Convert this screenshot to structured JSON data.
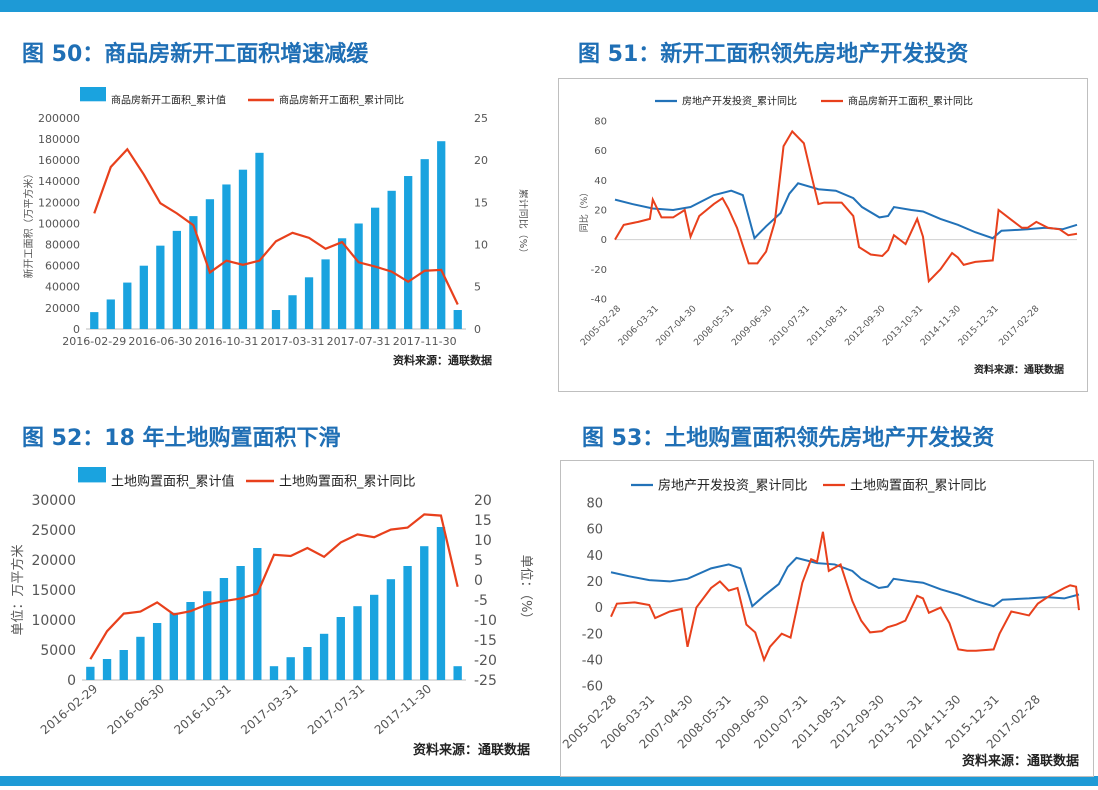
{
  "colors": {
    "accent": "#1e9ad6",
    "title": "#1f6fb5",
    "blue_series": "#1aa3df",
    "blue_line": "#2272b8",
    "red_series": "#e8401c"
  },
  "titles": {
    "c50": "图 50：商品房新开工面积增速减缓",
    "c51": "图 51：新开工面积领先房地产开发投资",
    "c52": "图 52：18 年土地购置面积下滑",
    "c53": "图 53：土地购置面积领先房地产开发投资"
  },
  "chart_data": [
    {
      "id": "c50",
      "type": "bar+line",
      "legend": [
        "商品房新开工面积_累计值",
        "商品房新开工面积_累计同比"
      ],
      "ylabel_left": "新开工面积（万平方米）",
      "ylabel_right": "累计同比（%）",
      "ylim_left": [
        0,
        200000
      ],
      "ylim_right": [
        0,
        25
      ],
      "yticks_left": [
        "0",
        "20000",
        "40000",
        "60000",
        "80000",
        "100000",
        "120000",
        "140000",
        "160000",
        "180000",
        "200000"
      ],
      "yticks_right": [
        "0",
        "5",
        "10",
        "15",
        "20",
        "25"
      ],
      "xticks": [
        "2016-02-29",
        "2016-06-30",
        "2016-10-31",
        "2017-03-31",
        "2017-07-31",
        "2017-11-30"
      ],
      "bars": [
        16000,
        28000,
        44000,
        60000,
        79000,
        93000,
        107000,
        123000,
        137000,
        151000,
        167000,
        18000,
        32000,
        49000,
        66000,
        86000,
        100000,
        115000,
        131000,
        145000,
        161000,
        178000,
        18000
      ],
      "line": [
        13.7,
        19.2,
        21.3,
        18.3,
        14.9,
        13.7,
        12.3,
        6.7,
        8.1,
        7.6,
        8.1,
        10.4,
        11.4,
        10.8,
        9.5,
        10.3,
        7.9,
        7.4,
        6.8,
        5.6,
        6.9,
        7.0,
        2.9
      ],
      "source": "资料来源：通联数据"
    },
    {
      "id": "c51",
      "type": "line",
      "legend": [
        "房地产开发投资_累计同比",
        "商品房新开工面积_累计同比"
      ],
      "ylabel": "同比（%）",
      "ylim": [
        -40,
        80
      ],
      "yticks": [
        "80",
        "60",
        "40",
        "20",
        "0",
        "-20",
        "-40"
      ],
      "xticks": [
        "2005-02-28",
        "2006-03-31",
        "2007-04-30",
        "2008-05-31",
        "2009-06-30",
        "2010-07-31",
        "2011-08-31",
        "2012-09-30",
        "2013-10-31",
        "2014-11-30",
        "2015-12-31",
        "2017-02-28"
      ],
      "x_start": "2005-02",
      "x_end": "2018-05",
      "series": [
        {
          "name": "房地产开发投资_累计同比",
          "points": [
            [
              "2005-02",
              27
            ],
            [
              "2005-08",
              24
            ],
            [
              "2006-03",
              21
            ],
            [
              "2006-10",
              20
            ],
            [
              "2007-04",
              22
            ],
            [
              "2007-12",
              30
            ],
            [
              "2008-06",
              33
            ],
            [
              "2008-10",
              30
            ],
            [
              "2009-02",
              1
            ],
            [
              "2009-06",
              9
            ],
            [
              "2009-11",
              18
            ],
            [
              "2010-02",
              31
            ],
            [
              "2010-05",
              38
            ],
            [
              "2010-12",
              34
            ],
            [
              "2011-06",
              33
            ],
            [
              "2011-12",
              28
            ],
            [
              "2012-03",
              22
            ],
            [
              "2012-09",
              15
            ],
            [
              "2012-12",
              16
            ],
            [
              "2013-02",
              22
            ],
            [
              "2013-08",
              20
            ],
            [
              "2013-12",
              19
            ],
            [
              "2014-06",
              14
            ],
            [
              "2014-12",
              10
            ],
            [
              "2015-06",
              5
            ],
            [
              "2015-12",
              1
            ],
            [
              "2016-03",
              6
            ],
            [
              "2016-12",
              7
            ],
            [
              "2017-06",
              8
            ],
            [
              "2017-12",
              7
            ],
            [
              "2018-05",
              10
            ]
          ]
        },
        {
          "name": "商品房新开工面积_累计同比",
          "points": [
            [
              "2005-02",
              0
            ],
            [
              "2005-05",
              10
            ],
            [
              "2005-10",
              12
            ],
            [
              "2006-02",
              14
            ],
            [
              "2006-03",
              27
            ],
            [
              "2006-06",
              15
            ],
            [
              "2006-10",
              15
            ],
            [
              "2007-02",
              20
            ],
            [
              "2007-04",
              2
            ],
            [
              "2007-07",
              16
            ],
            [
              "2007-12",
              24
            ],
            [
              "2008-03",
              28
            ],
            [
              "2008-05",
              21
            ],
            [
              "2008-08",
              8
            ],
            [
              "2008-12",
              -16
            ],
            [
              "2009-03",
              -16
            ],
            [
              "2009-06",
              -8
            ],
            [
              "2009-09",
              12
            ],
            [
              "2009-12",
              63
            ],
            [
              "2010-03",
              73
            ],
            [
              "2010-07",
              65
            ],
            [
              "2010-10",
              40
            ],
            [
              "2010-12",
              24
            ],
            [
              "2011-02",
              25
            ],
            [
              "2011-08",
              25
            ],
            [
              "2011-12",
              16
            ],
            [
              "2012-02",
              -5
            ],
            [
              "2012-06",
              -10
            ],
            [
              "2012-10",
              -11
            ],
            [
              "2012-12",
              -7
            ],
            [
              "2013-02",
              3
            ],
            [
              "2013-06",
              -3
            ],
            [
              "2013-10",
              14
            ],
            [
              "2013-12",
              2
            ],
            [
              "2014-02",
              -28
            ],
            [
              "2014-06",
              -20
            ],
            [
              "2014-10",
              -9
            ],
            [
              "2014-12",
              -12
            ],
            [
              "2015-02",
              -17
            ],
            [
              "2015-06",
              -15
            ],
            [
              "2015-12",
              -14
            ],
            [
              "2016-02",
              20
            ],
            [
              "2016-06",
              14
            ],
            [
              "2016-10",
              8
            ],
            [
              "2016-12",
              8
            ],
            [
              "2017-03",
              12
            ],
            [
              "2017-07",
              8
            ],
            [
              "2017-11",
              7
            ],
            [
              "2018-02",
              3
            ],
            [
              "2018-05",
              4
            ]
          ]
        }
      ],
      "source": "资料来源：通联数据"
    },
    {
      "id": "c52",
      "type": "bar+line",
      "legend": [
        "土地购置面积_累计值",
        "土地购置面积_累计同比"
      ],
      "ylabel_left": "单位：万平方米",
      "ylabel_right": "单位：（%）",
      "ylim_left": [
        0,
        30000
      ],
      "ylim_right": [
        -25,
        20
      ],
      "yticks_left": [
        "0",
        "5000",
        "10000",
        "15000",
        "20000",
        "25000",
        "30000"
      ],
      "yticks_right": [
        "-25",
        "-20",
        "-15",
        "-10",
        "-5",
        "0",
        "5",
        "10",
        "15",
        "20"
      ],
      "xticks": [
        "2016-02-29",
        "2016-06-30",
        "2016-10-31",
        "2017-03-31",
        "2017-07-31",
        "2017-11-30"
      ],
      "bars": [
        2200,
        3500,
        5000,
        7200,
        9500,
        11200,
        13000,
        14800,
        17000,
        19000,
        22000,
        2300,
        3800,
        5500,
        7700,
        10500,
        12300,
        14200,
        16800,
        19000,
        22300,
        25500,
        2300
      ],
      "line": [
        -19.8,
        -12.8,
        -8.4,
        -7.9,
        -5.6,
        -8.6,
        -7.8,
        -6.1,
        -5.3,
        -4.6,
        -3.4,
        6.3,
        6.0,
        8.0,
        5.8,
        9.4,
        11.4,
        10.7,
        12.6,
        13.1,
        16.4,
        16.1,
        -1.7
      ],
      "source": "资料来源：通联数据"
    },
    {
      "id": "c53",
      "type": "line",
      "legend": [
        "房地产开发投资_累计同比",
        "土地购置面积_累计同比"
      ],
      "ylim": [
        -60,
        80
      ],
      "yticks": [
        "80",
        "60",
        "40",
        "20",
        "0",
        "-20",
        "-40",
        "-60"
      ],
      "xticks": [
        "2005-02-28",
        "2006-03-31",
        "2007-04-30",
        "2008-05-31",
        "2009-06-30",
        "2010-07-31",
        "2011-08-31",
        "2012-09-30",
        "2013-10-31",
        "2014-11-30",
        "2015-12-31",
        "2017-02-28"
      ],
      "x_start": "2005-02",
      "x_end": "2018-05",
      "series": [
        {
          "name": "房地产开发投资_累计同比",
          "points": [
            [
              "2005-02",
              27
            ],
            [
              "2005-08",
              24
            ],
            [
              "2006-03",
              21
            ],
            [
              "2006-10",
              20
            ],
            [
              "2007-04",
              22
            ],
            [
              "2007-12",
              30
            ],
            [
              "2008-06",
              33
            ],
            [
              "2008-10",
              30
            ],
            [
              "2009-02",
              1
            ],
            [
              "2009-06",
              9
            ],
            [
              "2009-11",
              18
            ],
            [
              "2010-02",
              31
            ],
            [
              "2010-05",
              38
            ],
            [
              "2010-12",
              34
            ],
            [
              "2011-06",
              33
            ],
            [
              "2011-12",
              28
            ],
            [
              "2012-03",
              22
            ],
            [
              "2012-09",
              15
            ],
            [
              "2012-12",
              16
            ],
            [
              "2013-02",
              22
            ],
            [
              "2013-08",
              20
            ],
            [
              "2013-12",
              19
            ],
            [
              "2014-06",
              14
            ],
            [
              "2014-12",
              10
            ],
            [
              "2015-06",
              5
            ],
            [
              "2015-12",
              1
            ],
            [
              "2016-03",
              6
            ],
            [
              "2016-12",
              7
            ],
            [
              "2017-06",
              8
            ],
            [
              "2017-12",
              7
            ],
            [
              "2018-05",
              10
            ]
          ]
        },
        {
          "name": "土地购置面积_累计同比",
          "points": [
            [
              "2005-02",
              -7
            ],
            [
              "2005-04",
              3
            ],
            [
              "2005-10",
              4
            ],
            [
              "2006-03",
              2
            ],
            [
              "2006-05",
              -8
            ],
            [
              "2006-10",
              -3
            ],
            [
              "2007-02",
              -1
            ],
            [
              "2007-04",
              -30
            ],
            [
              "2007-07",
              0
            ],
            [
              "2007-12",
              15
            ],
            [
              "2008-03",
              20
            ],
            [
              "2008-06",
              13
            ],
            [
              "2008-09",
              15
            ],
            [
              "2008-12",
              -13
            ],
            [
              "2009-03",
              -19
            ],
            [
              "2009-06",
              -40
            ],
            [
              "2009-08",
              -30
            ],
            [
              "2009-12",
              -20
            ],
            [
              "2010-03",
              -23
            ],
            [
              "2010-07",
              19
            ],
            [
              "2010-10",
              37
            ],
            [
              "2010-12",
              35
            ],
            [
              "2011-02",
              58
            ],
            [
              "2011-04",
              28
            ],
            [
              "2011-08",
              33
            ],
            [
              "2011-12",
              5
            ],
            [
              "2012-03",
              -10
            ],
            [
              "2012-06",
              -19
            ],
            [
              "2012-10",
              -18
            ],
            [
              "2012-12",
              -15
            ],
            [
              "2013-03",
              -13
            ],
            [
              "2013-06",
              -10
            ],
            [
              "2013-10",
              9
            ],
            [
              "2013-12",
              7
            ],
            [
              "2014-02",
              -4
            ],
            [
              "2014-06",
              0
            ],
            [
              "2014-09",
              -12
            ],
            [
              "2014-12",
              -32
            ],
            [
              "2015-03",
              -33
            ],
            [
              "2015-06",
              -33
            ],
            [
              "2015-12",
              -32
            ],
            [
              "2016-02",
              -20
            ],
            [
              "2016-06",
              -3
            ],
            [
              "2016-12",
              -6
            ],
            [
              "2017-03",
              3
            ],
            [
              "2017-07",
              9
            ],
            [
              "2017-12",
              15
            ],
            [
              "2018-02",
              17
            ],
            [
              "2018-04",
              16
            ],
            [
              "2018-05",
              -2
            ]
          ]
        }
      ],
      "source": "资料来源：通联数据"
    }
  ]
}
